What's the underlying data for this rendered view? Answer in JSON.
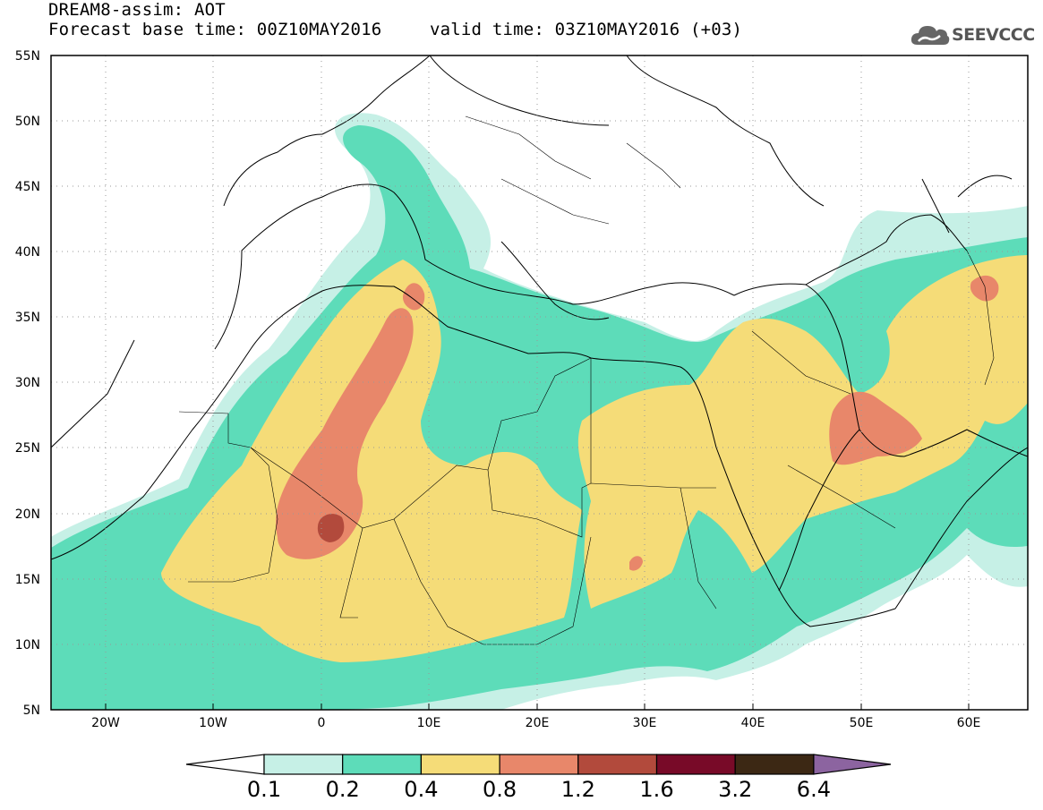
{
  "header": {
    "title": "DREAM8-assim: AOT",
    "base_time": "Forecast base time: 00Z10MAY2016",
    "valid_time": "valid time: 03Z10MAY2016 (+03)"
  },
  "logo": {
    "text": "SEEVCCC",
    "icon": "cloud-icon"
  },
  "map": {
    "lon_range": [
      -25,
      65
    ],
    "lat_range": [
      5,
      55
    ],
    "lon_ticks": [
      "20W",
      "10W",
      "0",
      "10E",
      "20E",
      "30E",
      "40E",
      "50E",
      "60E"
    ],
    "lat_ticks": [
      "55N",
      "50N",
      "45N",
      "40N",
      "35N",
      "30N",
      "25N",
      "20N",
      "15N",
      "10N",
      "5N"
    ],
    "gridlines": "dotted"
  },
  "colorbar": {
    "labels": [
      "0.1",
      "0.2",
      "0.4",
      "0.8",
      "1.2",
      "1.6",
      "3.2",
      "6.4"
    ],
    "colors": [
      "#ffffff",
      "#c6f0e6",
      "#5ddcb9",
      "#f5dc78",
      "#e8876a",
      "#b24a3c",
      "#780a28",
      "#3c2814",
      "#8c64a0"
    ]
  }
}
